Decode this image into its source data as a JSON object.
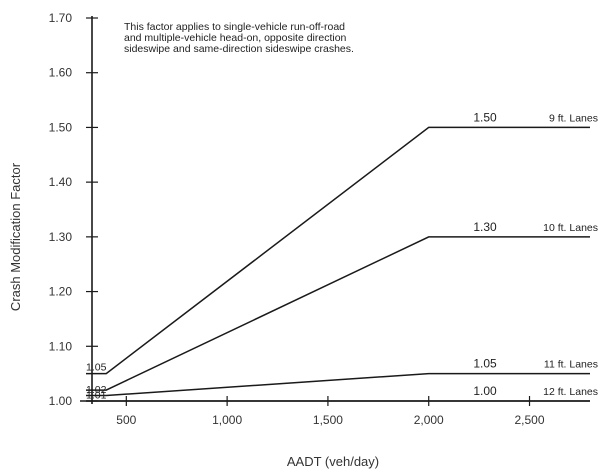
{
  "chart_data": {
    "type": "line",
    "xlabel": "AADT (veh/day)",
    "ylabel": "Crash Modification Factor",
    "xlim": [
      300,
      2800
    ],
    "ylim": [
      1.0,
      1.7
    ],
    "x_ticks": [
      500,
      1000,
      1500,
      2000,
      2500
    ],
    "x_tick_labels": [
      "500",
      "1,000",
      "1,500",
      "2,000",
      "2,500"
    ],
    "y_ticks": [
      1.0,
      1.1,
      1.2,
      1.3,
      1.4,
      1.5,
      1.6,
      1.7
    ],
    "y_tick_labels": [
      "1.00",
      "1.10",
      "1.20",
      "1.30",
      "1.40",
      "1.50",
      "1.60",
      "1.70"
    ],
    "note": [
      "This factor applies to single-vehicle run-off-road",
      "and multiple-vehicle head-on, opposite direction",
      "sideswipe and same-direction sideswipe crashes."
    ],
    "series": [
      {
        "name": "9 ft. Lanes",
        "x": [
          300,
          400,
          2000,
          2800
        ],
        "y": [
          1.05,
          1.05,
          1.5,
          1.5
        ],
        "start_label": "1.05",
        "end_label": "1.50"
      },
      {
        "name": "10 ft. Lanes",
        "x": [
          300,
          400,
          2000,
          2800
        ],
        "y": [
          1.02,
          1.02,
          1.3,
          1.3
        ],
        "start_label": "1.02",
        "end_label": "1.30"
      },
      {
        "name": "11 ft. Lanes",
        "x": [
          300,
          400,
          2000,
          2800
        ],
        "y": [
          1.01,
          1.01,
          1.05,
          1.05
        ],
        "start_label": "1.01",
        "end_label": "1.05"
      },
      {
        "name": "12 ft. Lanes",
        "x": [
          300,
          2800
        ],
        "y": [
          1.0,
          1.0
        ],
        "start_label": "",
        "end_label": "1.00"
      }
    ],
    "line_color": "#1a1a1a",
    "grid": false
  }
}
